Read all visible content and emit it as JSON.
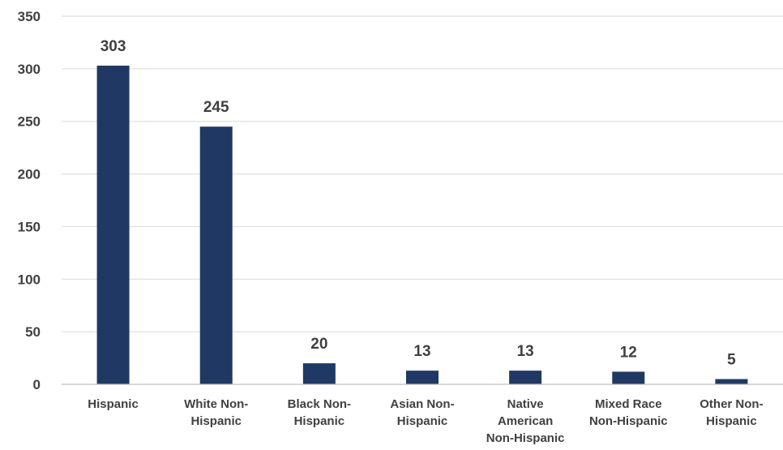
{
  "chart_data": {
    "type": "bar",
    "title": "",
    "xlabel": "",
    "ylabel": "",
    "categories": [
      [
        "Hispanic"
      ],
      [
        "White Non-",
        "Hispanic"
      ],
      [
        "Black Non-",
        "Hispanic"
      ],
      [
        "Asian Non-",
        "Hispanic"
      ],
      [
        "Native",
        "American",
        "Non-Hispanic"
      ],
      [
        "Mixed Race",
        "Non-Hispanic"
      ],
      [
        "Other Non-",
        "Hispanic"
      ]
    ],
    "values": [
      303,
      245,
      20,
      13,
      13,
      12,
      5
    ],
    "data_labels": [
      "303",
      "245",
      "20",
      "13",
      "13",
      "12",
      "5"
    ],
    "ylim": [
      0,
      350
    ],
    "yticks": [
      0,
      50,
      100,
      150,
      200,
      250,
      300,
      350
    ],
    "grid": true,
    "legend": "none",
    "bar_color": "#203864"
  }
}
